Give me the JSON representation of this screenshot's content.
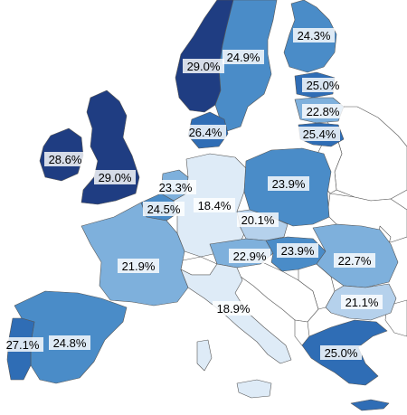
{
  "map": {
    "colors": {
      "very_dark": "#1f3d82",
      "dark": "#2f6db5",
      "medium": "#4a8cc8",
      "light": "#7eb0dc",
      "pale": "#b5d1ec",
      "very_pale": "#deebf7",
      "no_data": "#ffffff"
    },
    "countries": [
      {
        "id": "norway",
        "name": "Norway",
        "value": "29.0%",
        "level": "very_dark"
      },
      {
        "id": "sweden",
        "name": "Sweden",
        "value": "24.9%",
        "level": "medium"
      },
      {
        "id": "finland",
        "name": "Finland",
        "value": "24.3%",
        "level": "medium"
      },
      {
        "id": "estonia",
        "name": "Estonia",
        "value": "25.0%",
        "level": "dark"
      },
      {
        "id": "latvia",
        "name": "Latvia",
        "value": "22.8%",
        "level": "light"
      },
      {
        "id": "lithuania",
        "name": "Lithuania",
        "value": "25.4%",
        "level": "dark"
      },
      {
        "id": "denmark",
        "name": "Denmark",
        "value": "26.4%",
        "level": "dark"
      },
      {
        "id": "ireland",
        "name": "Ireland",
        "value": "28.6%",
        "level": "very_dark"
      },
      {
        "id": "uk",
        "name": "United Kingdom",
        "value": "29.0%",
        "level": "very_dark"
      },
      {
        "id": "netherlands",
        "name": "Netherlands",
        "value": "23.3%",
        "level": "light"
      },
      {
        "id": "belgium",
        "name": "Belgium",
        "value": "24.5%",
        "level": "medium"
      },
      {
        "id": "germany",
        "name": "Germany",
        "value": "18.4%",
        "level": "very_pale"
      },
      {
        "id": "poland",
        "name": "Poland",
        "value": "23.9%",
        "level": "medium"
      },
      {
        "id": "czechia",
        "name": "Czechia",
        "value": "20.1%",
        "level": "pale"
      },
      {
        "id": "france",
        "name": "France",
        "value": "21.9%",
        "level": "light"
      },
      {
        "id": "austria",
        "name": "Austria",
        "value": "22.9%",
        "level": "light"
      },
      {
        "id": "hungary",
        "name": "Hungary",
        "value": "23.9%",
        "level": "medium"
      },
      {
        "id": "romania",
        "name": "Romania",
        "value": "22.7%",
        "level": "light"
      },
      {
        "id": "bulgaria",
        "name": "Bulgaria",
        "value": "21.1%",
        "level": "pale"
      },
      {
        "id": "italy",
        "name": "Italy",
        "value": "18.9%",
        "level": "very_pale"
      },
      {
        "id": "portugal",
        "name": "Portugal",
        "value": "27.1%",
        "level": "dark"
      },
      {
        "id": "spain",
        "name": "Spain",
        "value": "24.8%",
        "level": "medium"
      },
      {
        "id": "greece",
        "name": "Greece",
        "value": "25.0%",
        "level": "dark"
      }
    ]
  }
}
